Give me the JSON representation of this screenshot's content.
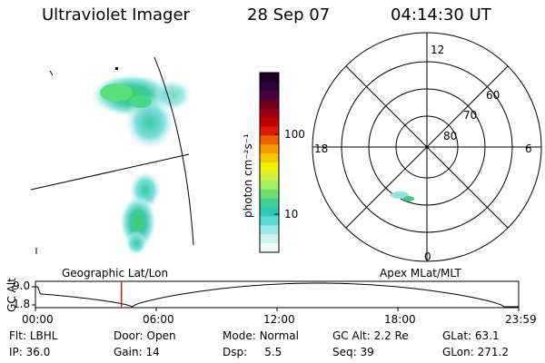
{
  "header": {
    "instrument": "Ultraviolet Imager",
    "date": "28 Sep 07",
    "time": "04:14:30 UT"
  },
  "colorbar": {
    "label": "photon cm⁻²s⁻¹",
    "ticks": [
      "100",
      "10"
    ],
    "colors_top_to_bottom": [
      "#1a0022",
      "#2b0038",
      "#4a0040",
      "#700020",
      "#9a0010",
      "#c20000",
      "#e01a00",
      "#f06000",
      "#f59a00",
      "#f5c800",
      "#f2f000",
      "#d0f040",
      "#a4f060",
      "#6ee070",
      "#40d090",
      "#30c8b8",
      "#58d8d8",
      "#9be8e8",
      "#cdf2f2",
      "#eefafa"
    ]
  },
  "geo_map": {
    "title": "Geographic Lat/Lon"
  },
  "polar": {
    "title": "Apex MLat/MLT",
    "mlt_labels": {
      "top": "12",
      "left": "18",
      "right": "6",
      "bottom": "0"
    },
    "lat_labels": [
      "60",
      "70",
      "80"
    ]
  },
  "timeline": {
    "axis_label": "GC Alt",
    "y_ticks": [
      "9.0",
      "1.8"
    ],
    "x_ticks": [
      "00:00",
      "06:00",
      "12:00",
      "18:00",
      "23:59"
    ],
    "current_time_fraction": 0.178
  },
  "status": {
    "row1": [
      {
        "label": "Flt:",
        "value": "LBHL"
      },
      {
        "label": "Door:",
        "value": "Open"
      },
      {
        "label": "Mode:",
        "value": "Normal"
      },
      {
        "label": "GC Alt:",
        "value": "2.2 Re"
      },
      {
        "label": "GLat:",
        "value": "63.1"
      }
    ],
    "row2": [
      {
        "label": "IP:",
        "value": "36.0"
      },
      {
        "label": "Gain:",
        "value": "14"
      },
      {
        "label": "Dsp:",
        "value": "5.5"
      },
      {
        "label": "Seq:",
        "value": "39"
      },
      {
        "label": "GLon:",
        "value": "271.2"
      }
    ]
  }
}
